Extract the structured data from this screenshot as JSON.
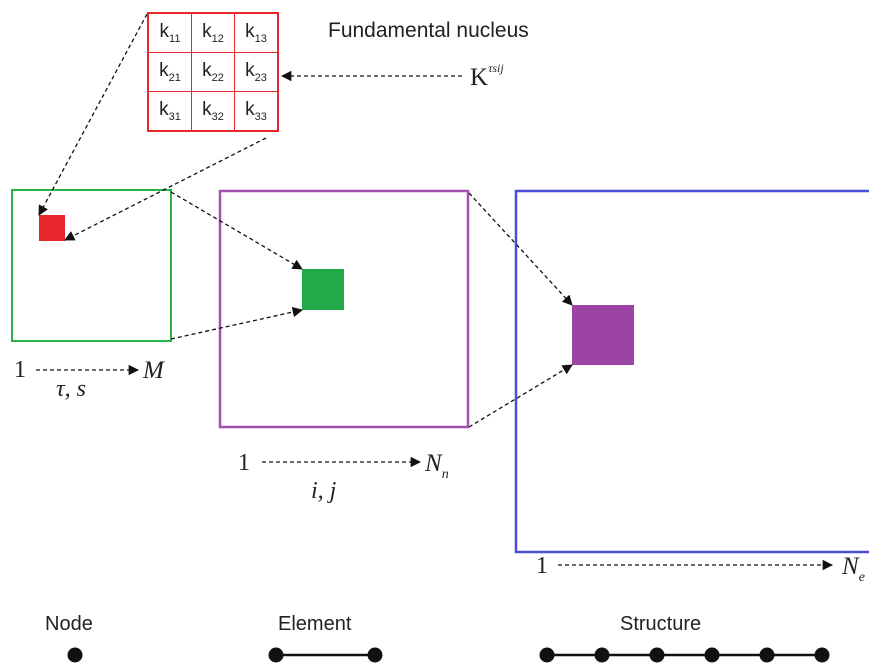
{
  "nucleus_title": "Fundamental nucleus",
  "nucleus_symbol": {
    "base": "K",
    "sup": "τsij"
  },
  "nucleus_cells": [
    [
      {
        "k": "k",
        "sub": "11"
      },
      {
        "k": "k",
        "sub": "12"
      },
      {
        "k": "k",
        "sub": "13"
      }
    ],
    [
      {
        "k": "k",
        "sub": "21"
      },
      {
        "k": "k",
        "sub": "22"
      },
      {
        "k": "k",
        "sub": "23"
      }
    ],
    [
      {
        "k": "k",
        "sub": "31"
      },
      {
        "k": "k",
        "sub": "32"
      },
      {
        "k": "k",
        "sub": "33"
      }
    ]
  ],
  "node_axis": {
    "start": "1",
    "end": "M",
    "index": "τ, s"
  },
  "element_axis": {
    "start": "1",
    "end": "N",
    "end_sub": "n",
    "index": "i, j"
  },
  "structure_axis": {
    "start": "1",
    "end": "N",
    "end_sub": "e"
  },
  "legend": {
    "node": {
      "label": "Node",
      "dots": 1
    },
    "element": {
      "label": "Element",
      "dots": 2
    },
    "structure": {
      "label": "Structure",
      "dots": 6
    }
  },
  "colors": {
    "nucleus": "#e8262c",
    "node_box": "#2bb34a",
    "element_box": "#a450b0",
    "structure_box": "#4a4fd8",
    "node_cell": "#e8262c",
    "element_cell": "#22aa4a",
    "structure_cell": "#9b44a6"
  }
}
